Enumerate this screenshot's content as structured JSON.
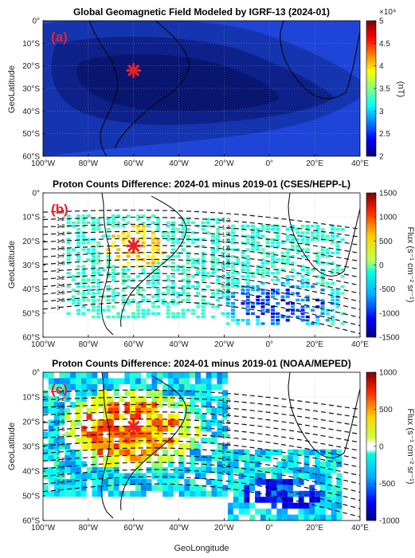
{
  "figure": {
    "xlabel": "GeoLongitude"
  },
  "chart_data": [
    {
      "type": "heatmap",
      "panel_label": "(a)",
      "title": "Global Geomagnetic Field Modeled by IGRF-13 (2024-01)",
      "ylabel": "GeoLatitude",
      "xlim": [
        -100,
        40
      ],
      "ylim": [
        -60,
        0
      ],
      "xticks": [
        "100°W",
        "80°W",
        "60°W",
        "40°W",
        "20°W",
        "0°",
        "20°E",
        "40°E"
      ],
      "yticks": [
        "0°",
        "10°S",
        "20°S",
        "30°S",
        "40°S",
        "50°S",
        "60°S"
      ],
      "grid": true,
      "colorbar": {
        "label": "(nT)",
        "exponent": "×10⁴",
        "ticks": [
          "5",
          "4.5",
          "4",
          "3.5",
          "3",
          "2.5",
          "2"
        ],
        "range": [
          20000,
          50000
        ],
        "colors": [
          "#0a0a7a",
          "#1446d6",
          "#1f9ce8",
          "#26d0c8",
          "#9be06a",
          "#f2e43a",
          "#f49a24",
          "#d42a14",
          "#7a0a0a"
        ]
      },
      "contour_levels_nT": [
        20000,
        22500,
        25000,
        27500,
        30000,
        32500,
        35000
      ],
      "marker": {
        "lon": -60,
        "lat": -22,
        "symbol": "asterisk",
        "color": "#e8202a"
      }
    },
    {
      "type": "heatmap",
      "panel_label": "(b)",
      "title": "Proton Counts Difference: 2024-01 minus 2019-01 (CSES/HEPP-L)",
      "ylabel": "GeoLatitude",
      "xlim": [
        -100,
        40
      ],
      "ylim": [
        -60,
        0
      ],
      "xticks": [
        "100°W",
        "80°W",
        "60°W",
        "40°W",
        "20°W",
        "0°",
        "20°E",
        "40°E"
      ],
      "yticks": [
        "0°",
        "10°S",
        "20°S",
        "30°S",
        "40°S",
        "50°S",
        "60°S"
      ],
      "colorbar": {
        "label": "Flux (s⁻¹ cm⁻² sr⁻¹)",
        "ticks": [
          "1500",
          "1000",
          "500",
          "0",
          "-500",
          "-1000",
          "-1500"
        ],
        "range": [
          -1500,
          1500
        ]
      },
      "l_shell_labels": [
        "1.1",
        "1.2",
        "1.3",
        "1.4",
        "1.5",
        "1.6",
        "1.7",
        "1.8",
        "2",
        "2.2",
        "2.4",
        "2.6",
        "2.8",
        "3"
      ],
      "marker": {
        "lon": -60,
        "lat": -22,
        "symbol": "asterisk",
        "color": "#e8202a"
      }
    },
    {
      "type": "heatmap",
      "panel_label": "(c)",
      "title": "Proton Counts Difference: 2024-01 minus 2019-01 (NOAA/MEPED)",
      "ylabel": "GeoLatitude",
      "xlim": [
        -100,
        40
      ],
      "ylim": [
        -60,
        0
      ],
      "xticks": [
        "100°W",
        "80°W",
        "60°W",
        "40°W",
        "20°W",
        "0°",
        "20°E",
        "40°E"
      ],
      "yticks": [
        "0°",
        "10°S",
        "20°S",
        "30°S",
        "40°S",
        "50°S",
        "60°S"
      ],
      "colorbar": {
        "label": "Flux (s⁻¹ cm⁻² sr⁻¹)",
        "ticks": [
          "1000",
          "500",
          "0",
          "-500",
          "-1000"
        ],
        "range": [
          -1000,
          1000
        ]
      },
      "l_shell_labels": [
        "1.1",
        "1.2",
        "1.3",
        "1.4",
        "1.5",
        "1.6",
        "1.7",
        "1.8",
        "2",
        "2.2",
        "2.4",
        "2.6",
        "2.8",
        "3"
      ],
      "marker": {
        "lon": -60,
        "lat": -22,
        "symbol": "asterisk",
        "color": "#e8202a"
      }
    }
  ]
}
